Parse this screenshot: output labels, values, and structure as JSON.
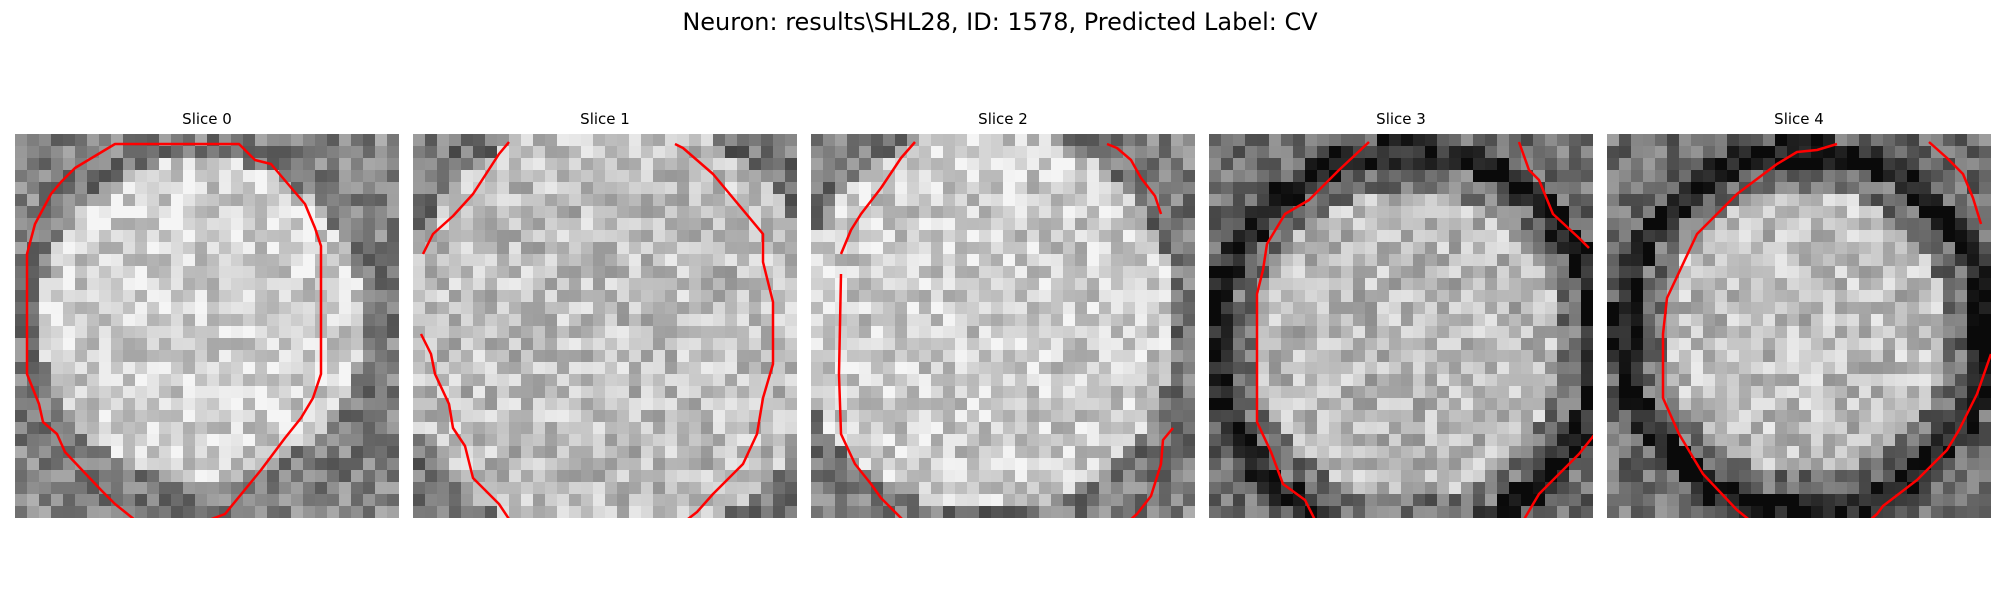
{
  "figure": {
    "suptitle": "Neuron: results\\SHL28, ID: 1578, Predicted Label: CV"
  },
  "panels": [
    {
      "title": "Slice 0"
    },
    {
      "title": "Slice 1"
    },
    {
      "title": "Slice 2"
    },
    {
      "title": "Slice 3"
    },
    {
      "title": "Slice 4"
    }
  ],
  "colors": {
    "contour": "#ff0000",
    "background": "#ffffff"
  }
}
